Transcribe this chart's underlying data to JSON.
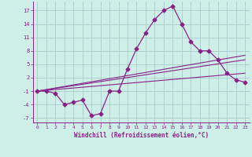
{
  "x": [
    0,
    1,
    2,
    3,
    4,
    5,
    6,
    7,
    8,
    9,
    10,
    11,
    12,
    13,
    14,
    15,
    16,
    17,
    18,
    19,
    20,
    21,
    22,
    23
  ],
  "temp": [
    -1,
    -1,
    -1.5,
    -4,
    -3.5,
    -3,
    -6.5,
    -6,
    -1,
    -1,
    4,
    8.5,
    12,
    15,
    17,
    18,
    14,
    10,
    8,
    8,
    6,
    3,
    1.5,
    1
  ],
  "line1_pts": [
    [
      0,
      -1
    ],
    [
      23,
      7
    ]
  ],
  "line2_pts": [
    [
      0,
      -1
    ],
    [
      23,
      6
    ]
  ],
  "line3_pts": [
    [
      0,
      -1
    ],
    [
      23,
      3
    ]
  ],
  "bg_color": "#ceeee8",
  "line_color": "#882288",
  "grid_color": "#aacccc",
  "xlabel": "Windchill (Refroidissement éolien,°C)",
  "ylim": [
    -8,
    19
  ],
  "xlim": [
    -0.5,
    23.5
  ],
  "yticks": [
    -7,
    -4,
    -1,
    2,
    5,
    8,
    11,
    14,
    17
  ],
  "xticks": [
    0,
    1,
    2,
    3,
    4,
    5,
    6,
    7,
    8,
    9,
    10,
    11,
    12,
    13,
    14,
    15,
    16,
    17,
    18,
    19,
    20,
    21,
    22,
    23
  ]
}
